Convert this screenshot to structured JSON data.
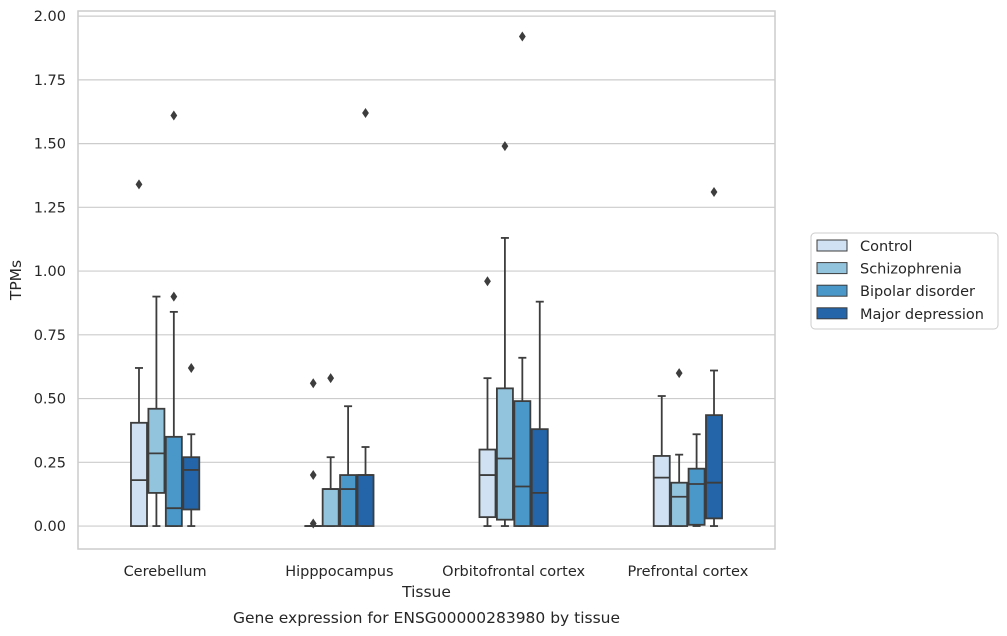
{
  "caption": "Gene expression for ENSG00000283980 by tissue",
  "chart_data": {
    "type": "box",
    "xlabel": "Tissue",
    "ylabel": "TPMs",
    "ylim": [
      -0.09,
      2.02
    ],
    "yticks": [
      "0.00",
      "0.25",
      "0.50",
      "0.75",
      "1.00",
      "1.25",
      "1.50",
      "1.75",
      "2.00"
    ],
    "grid": "horizontal",
    "legend_position": "right",
    "categories": [
      "Cerebellum",
      "Hipppocampus",
      "Orbitofrontal cortex",
      "Prefrontal cortex"
    ],
    "series": [
      {
        "name": "Control",
        "color": "#cfe1f2",
        "boxes": [
          {
            "whislo": 0.0,
            "q1": 0.0,
            "med": 0.18,
            "q3": 0.405,
            "whishi": 0.62,
            "fliers": [
              1.34
            ]
          },
          {
            "whislo": 0.0,
            "q1": 0.0,
            "med": 0.0,
            "q3": 0.0,
            "whishi": 0.0,
            "fliers": [
              0.56,
              0.2,
              0.01
            ]
          },
          {
            "whislo": 0.0,
            "q1": 0.035,
            "med": 0.2,
            "q3": 0.3,
            "whishi": 0.58,
            "fliers": [
              0.96
            ]
          },
          {
            "whislo": 0.0,
            "q1": 0.0,
            "med": 0.19,
            "q3": 0.275,
            "whishi": 0.51,
            "fliers": []
          }
        ]
      },
      {
        "name": "Schizophrenia",
        "color": "#93c4de",
        "boxes": [
          {
            "whislo": 0.0,
            "q1": 0.13,
            "med": 0.285,
            "q3": 0.46,
            "whishi": 0.9,
            "fliers": []
          },
          {
            "whislo": 0.0,
            "q1": 0.0,
            "med": 0.145,
            "q3": 0.145,
            "whishi": 0.27,
            "fliers": [
              0.58
            ]
          },
          {
            "whislo": 0.0,
            "q1": 0.025,
            "med": 0.265,
            "q3": 0.54,
            "whishi": 1.13,
            "fliers": [
              1.49
            ]
          },
          {
            "whislo": 0.0,
            "q1": 0.0,
            "med": 0.115,
            "q3": 0.17,
            "whishi": 0.28,
            "fliers": [
              0.6
            ]
          }
        ]
      },
      {
        "name": "Bipolar disorder",
        "color": "#4a98c9",
        "boxes": [
          {
            "whislo": 0.0,
            "q1": 0.0,
            "med": 0.07,
            "q3": 0.35,
            "whishi": 0.84,
            "fliers": [
              1.61,
              0.9
            ]
          },
          {
            "whislo": 0.0,
            "q1": 0.0,
            "med": 0.145,
            "q3": 0.2,
            "whishi": 0.47,
            "fliers": []
          },
          {
            "whislo": 0.0,
            "q1": 0.0,
            "med": 0.155,
            "q3": 0.49,
            "whishi": 0.66,
            "fliers": [
              1.92
            ]
          },
          {
            "whislo": 0.0,
            "q1": 0.005,
            "med": 0.165,
            "q3": 0.225,
            "whishi": 0.36,
            "fliers": []
          }
        ]
      },
      {
        "name": "Major depression",
        "color": "#2365a8",
        "boxes": [
          {
            "whislo": 0.0,
            "q1": 0.065,
            "med": 0.22,
            "q3": 0.27,
            "whishi": 0.36,
            "fliers": [
              0.62
            ]
          },
          {
            "whislo": 0.0,
            "q1": 0.0,
            "med": 0.2,
            "q3": 0.2,
            "whishi": 0.31,
            "fliers": [
              1.62
            ]
          },
          {
            "whislo": 0.0,
            "q1": 0.0,
            "med": 0.13,
            "q3": 0.38,
            "whishi": 0.88,
            "fliers": []
          },
          {
            "whislo": 0.0,
            "q1": 0.03,
            "med": 0.17,
            "q3": 0.435,
            "whishi": 0.61,
            "fliers": [
              1.31
            ]
          }
        ]
      }
    ]
  }
}
